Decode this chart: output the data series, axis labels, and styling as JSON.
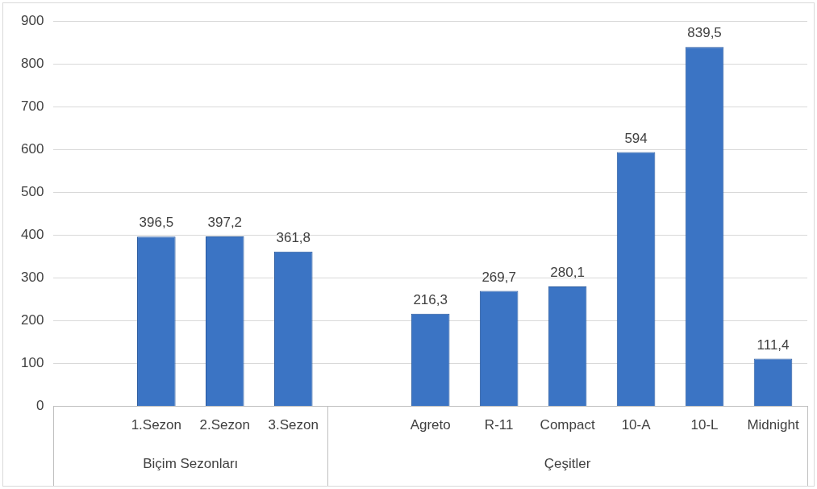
{
  "chart_data": {
    "type": "bar",
    "categories": [
      null,
      "1.Sezon",
      "2.Sezon",
      "3.Sezon",
      null,
      "Agreto",
      "R-11",
      "Compact",
      "10-A",
      "10-L",
      "Midnight"
    ],
    "values": [
      null,
      396.5,
      397.2,
      361.8,
      null,
      216.3,
      269.7,
      280.1,
      594,
      839.5,
      111.4
    ],
    "value_labels": [
      null,
      "396,5",
      "397,2",
      "361,8",
      null,
      "216,3",
      "269,7",
      "280,1",
      "594",
      "839,5",
      "111,4"
    ],
    "color": "#3b74c4",
    "ylim": [
      0,
      900
    ],
    "yticks": [
      0,
      100,
      200,
      300,
      400,
      500,
      600,
      700,
      800,
      900
    ],
    "grid": "y",
    "annotations": [
      "Biçim Sezonları",
      "Çeşitler"
    ]
  }
}
